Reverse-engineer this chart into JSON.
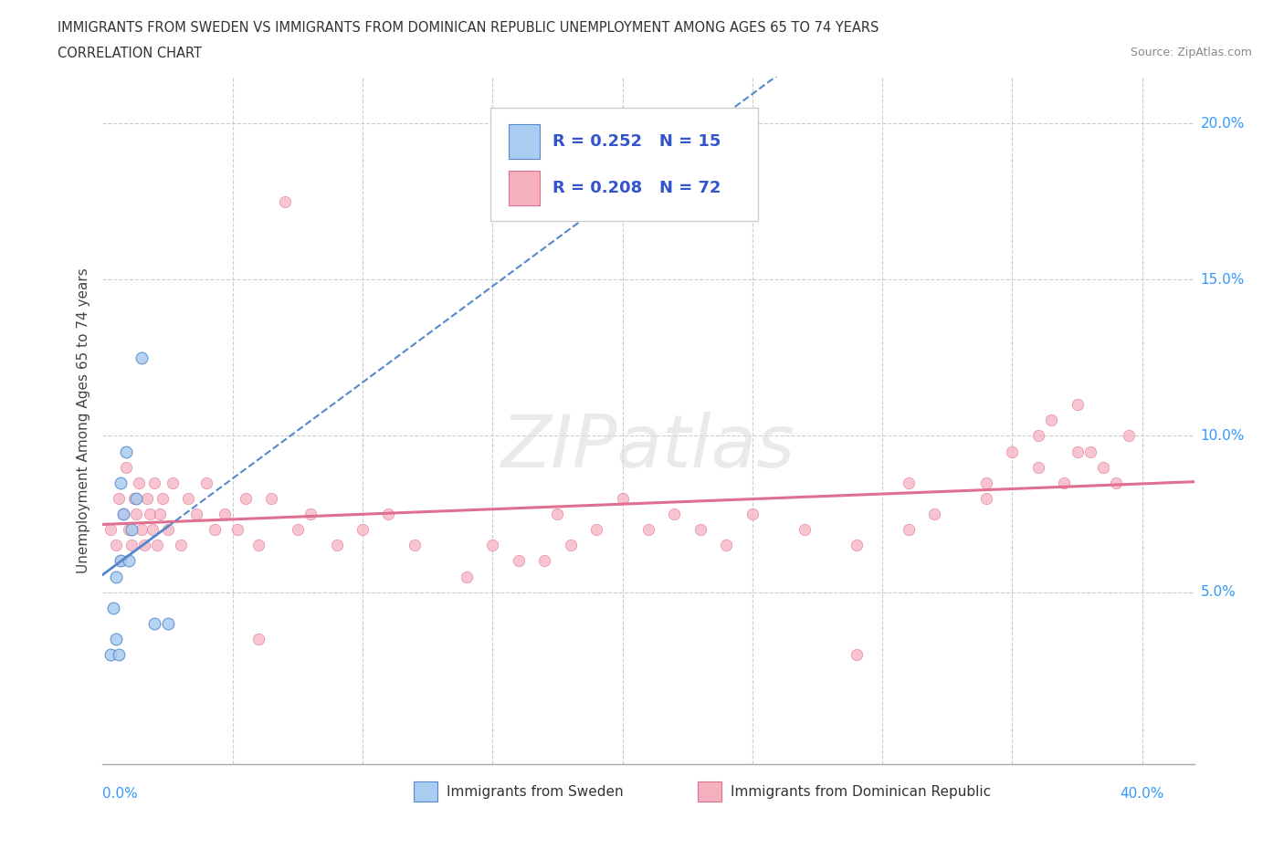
{
  "title_line1": "IMMIGRANTS FROM SWEDEN VS IMMIGRANTS FROM DOMINICAN REPUBLIC UNEMPLOYMENT AMONG AGES 65 TO 74 YEARS",
  "title_line2": "CORRELATION CHART",
  "source": "Source: ZipAtlas.com",
  "ylabel": "Unemployment Among Ages 65 to 74 years",
  "legend_label1": "Immigrants from Sweden",
  "legend_label2": "Immigrants from Dominican Republic",
  "R1": 0.252,
  "N1": 15,
  "R2": 0.208,
  "N2": 72,
  "xlim": [
    0.0,
    0.42
  ],
  "ylim": [
    -0.005,
    0.215
  ],
  "ytick_vals": [
    0.05,
    0.1,
    0.15,
    0.2
  ],
  "ytick_labels": [
    "5.0%",
    "10.0%",
    "15.0%",
    "20.0%"
  ],
  "xtick_vals": [
    0.0,
    0.05,
    0.1,
    0.15,
    0.2,
    0.25,
    0.3,
    0.35,
    0.4
  ],
  "color_sweden": "#aaccf0",
  "color_dr": "#f5b0c0",
  "trendline_sweden_color": "#5588cc",
  "trendline_dr_color": "#e07090",
  "background_color": "#ffffff",
  "sweden_x": [
    0.003,
    0.004,
    0.005,
    0.005,
    0.006,
    0.007,
    0.007,
    0.008,
    0.009,
    0.01,
    0.011,
    0.013,
    0.015,
    0.02,
    0.025
  ],
  "sweden_y": [
    0.03,
    0.045,
    0.035,
    0.055,
    0.03,
    0.06,
    0.085,
    0.075,
    0.095,
    0.06,
    0.07,
    0.08,
    0.125,
    0.04,
    0.04
  ],
  "dr_x": [
    0.003,
    0.005,
    0.006,
    0.007,
    0.008,
    0.009,
    0.01,
    0.011,
    0.012,
    0.013,
    0.014,
    0.015,
    0.016,
    0.017,
    0.018,
    0.019,
    0.02,
    0.021,
    0.022,
    0.023,
    0.025,
    0.027,
    0.03,
    0.033,
    0.036,
    0.04,
    0.043,
    0.047,
    0.052,
    0.055,
    0.06,
    0.065,
    0.07,
    0.075,
    0.08,
    0.09,
    0.1,
    0.11,
    0.12,
    0.14,
    0.15,
    0.16,
    0.17,
    0.175,
    0.18,
    0.19,
    0.2,
    0.21,
    0.22,
    0.23,
    0.24,
    0.25,
    0.27,
    0.29,
    0.31,
    0.32,
    0.34,
    0.35,
    0.36,
    0.365,
    0.37,
    0.375,
    0.38,
    0.385,
    0.39,
    0.395,
    0.31,
    0.34,
    0.36,
    0.375,
    0.06,
    0.29
  ],
  "dr_y": [
    0.07,
    0.065,
    0.08,
    0.06,
    0.075,
    0.09,
    0.07,
    0.065,
    0.08,
    0.075,
    0.085,
    0.07,
    0.065,
    0.08,
    0.075,
    0.07,
    0.085,
    0.065,
    0.075,
    0.08,
    0.07,
    0.085,
    0.065,
    0.08,
    0.075,
    0.085,
    0.07,
    0.075,
    0.07,
    0.08,
    0.065,
    0.08,
    0.175,
    0.07,
    0.075,
    0.065,
    0.07,
    0.075,
    0.065,
    0.055,
    0.065,
    0.06,
    0.06,
    0.075,
    0.065,
    0.07,
    0.08,
    0.07,
    0.075,
    0.07,
    0.065,
    0.075,
    0.07,
    0.065,
    0.07,
    0.075,
    0.085,
    0.095,
    0.1,
    0.105,
    0.085,
    0.11,
    0.095,
    0.09,
    0.085,
    0.1,
    0.085,
    0.08,
    0.09,
    0.095,
    0.035,
    0.03
  ],
  "sw_trend_x0": 0.0,
  "sw_trend_x1": 0.42,
  "dr_trend_x0": 0.0,
  "dr_trend_x1": 0.42
}
